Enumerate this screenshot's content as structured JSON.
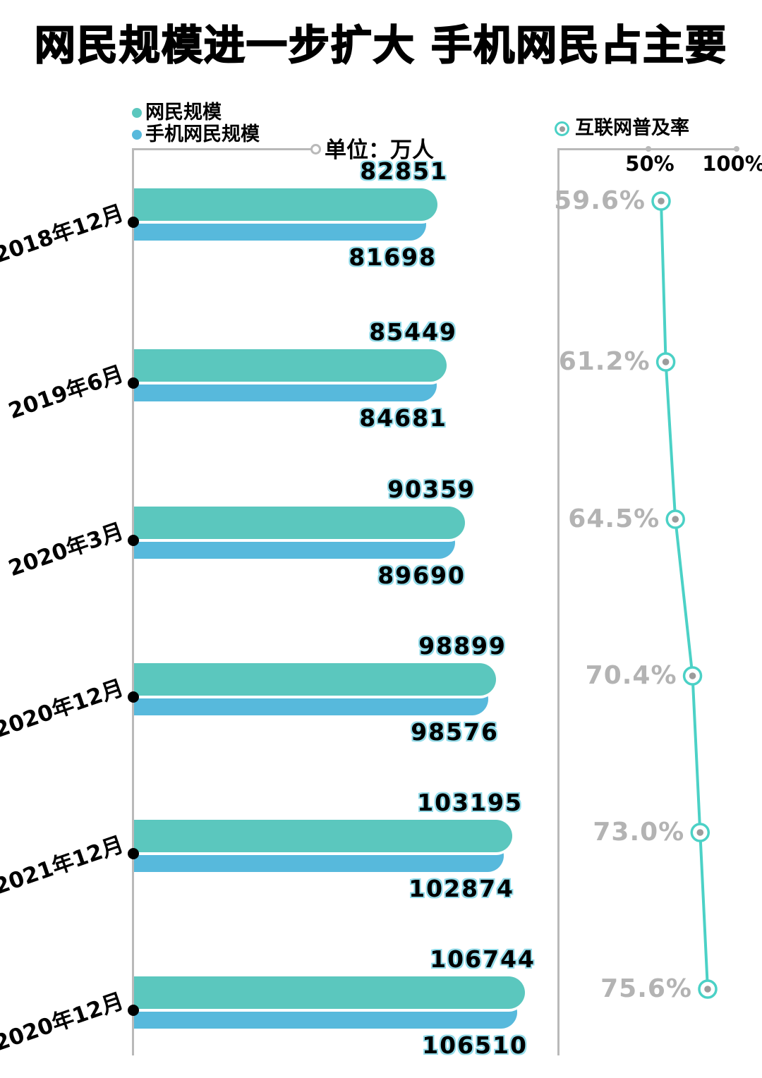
{
  "title": "网民规模进一步扩大 手机网民占主要",
  "unit_label": "单位：万人",
  "colors": {
    "primary_bar": "#5bc7be",
    "secondary_bar": "#57b9dc",
    "line": "#4bd1c6",
    "axis_gray": "#b9b9b9",
    "pct_text": "#b3b3b3",
    "value_outline": "#93dbe9",
    "marker_inner": "#9c9c9c"
  },
  "chart_data": [
    {
      "type": "bar",
      "orientation": "horizontal",
      "title": "",
      "unit": "单位：万人",
      "categories": [
        "2018年12月",
        "2019年6月",
        "2020年3月",
        "2020年12月",
        "2021年12月",
        "2020年12月"
      ],
      "series": [
        {
          "name": "网民规模",
          "color": "#5bc7be",
          "values": [
            82851,
            85449,
            90359,
            98899,
            103195,
            106744
          ]
        },
        {
          "name": "手机网民规模",
          "color": "#57b9dc",
          "values": [
            81698,
            84681,
            89690,
            98576,
            102874,
            106510
          ]
        }
      ],
      "value_labels": true,
      "legend_position": "top-left",
      "grid": false
    },
    {
      "type": "line",
      "title": "互联网普及率",
      "categories": [
        "2018年12月",
        "2019年6月",
        "2020年3月",
        "2020年12月",
        "2021年12月",
        "2020年12月"
      ],
      "values": [
        59.6,
        61.2,
        64.5,
        70.4,
        73.0,
        75.6
      ],
      "x_axis_ticks": [
        "50%",
        "100%"
      ],
      "xlim": [
        0,
        100
      ],
      "color": "#4bd1c6",
      "legend_position": "top",
      "grid": false
    }
  ]
}
